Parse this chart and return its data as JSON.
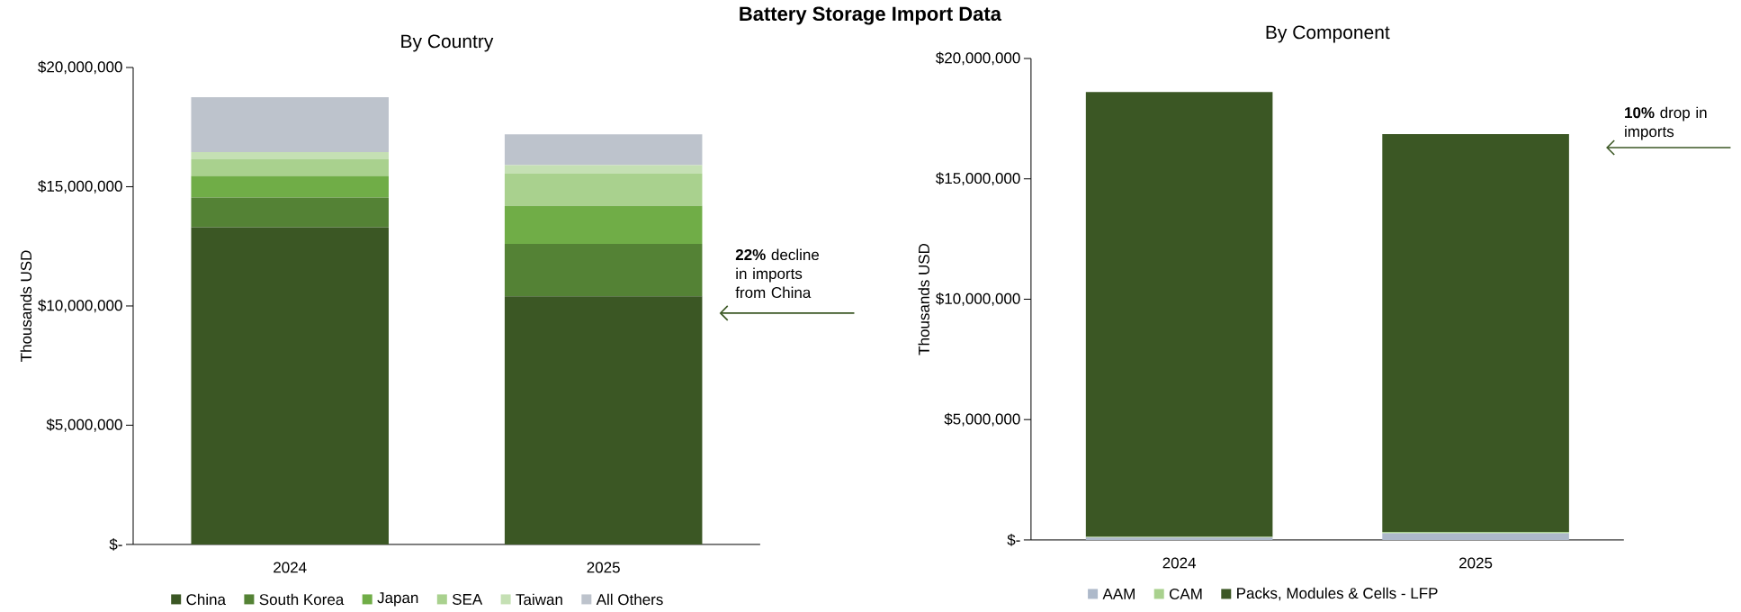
{
  "chart_data": [
    {
      "type": "bar",
      "stacked": true,
      "title": "By Country",
      "ylabel": "Thousands USD",
      "categories": [
        "2024",
        "2025"
      ],
      "series": [
        {
          "name": "China",
          "color": "#3b5724",
          "values": [
            13300000,
            10400000
          ]
        },
        {
          "name": "South Korea",
          "color": "#548235",
          "values": [
            1250000,
            2200000
          ]
        },
        {
          "name": "Japan",
          "color": "#70ad47",
          "values": [
            900000,
            1600000
          ]
        },
        {
          "name": "SEA",
          "color": "#a9d18e",
          "values": [
            700000,
            1350000
          ]
        },
        {
          "name": "Taiwan",
          "color": "#c5e0b4",
          "values": [
            300000,
            350000
          ]
        },
        {
          "name": "All Others",
          "color": "#bdc3cc",
          "values": [
            2300000,
            1300000
          ]
        }
      ],
      "ylim": [
        0,
        20000000
      ],
      "yticks": [
        {
          "value": 0,
          "label": "$-"
        },
        {
          "value": 5000000,
          "label": "$5,000,000"
        },
        {
          "value": 10000000,
          "label": "$10,000,000"
        },
        {
          "value": 15000000,
          "label": "$15,000,000"
        },
        {
          "value": 20000000,
          "label": "$20,000,000"
        }
      ],
      "legend": "bottom",
      "annotations": [
        "Battery Storage Import Data",
        "**22%** decline in imports from China"
      ]
    },
    {
      "type": "bar",
      "stacked": true,
      "title": "By Component",
      "ylabel": "Thousands USD",
      "categories": [
        "2024",
        "2025"
      ],
      "series": [
        {
          "name": "AAM",
          "color": "#adb9ca",
          "values": [
            100000,
            280000
          ]
        },
        {
          "name": "CAM",
          "color": "#a9d18e",
          "values": [
            30000,
            50000
          ]
        },
        {
          "name": "Packs, Modules & Cells - LFP",
          "color": "#3b5724",
          "values": [
            18480000,
            16530000
          ]
        }
      ],
      "ylim": [
        0,
        20000000
      ],
      "yticks": [
        {
          "value": 0,
          "label": "$-"
        },
        {
          "value": 5000000,
          "label": "$5,000,000"
        },
        {
          "value": 10000000,
          "label": "$10,000,000"
        },
        {
          "value": 15000000,
          "label": "$15,000,000"
        },
        {
          "value": 20000000,
          "label": "$20,000,000"
        }
      ],
      "legend": "bottom",
      "annotations": [
        "**10%** drop in imports"
      ]
    }
  ]
}
